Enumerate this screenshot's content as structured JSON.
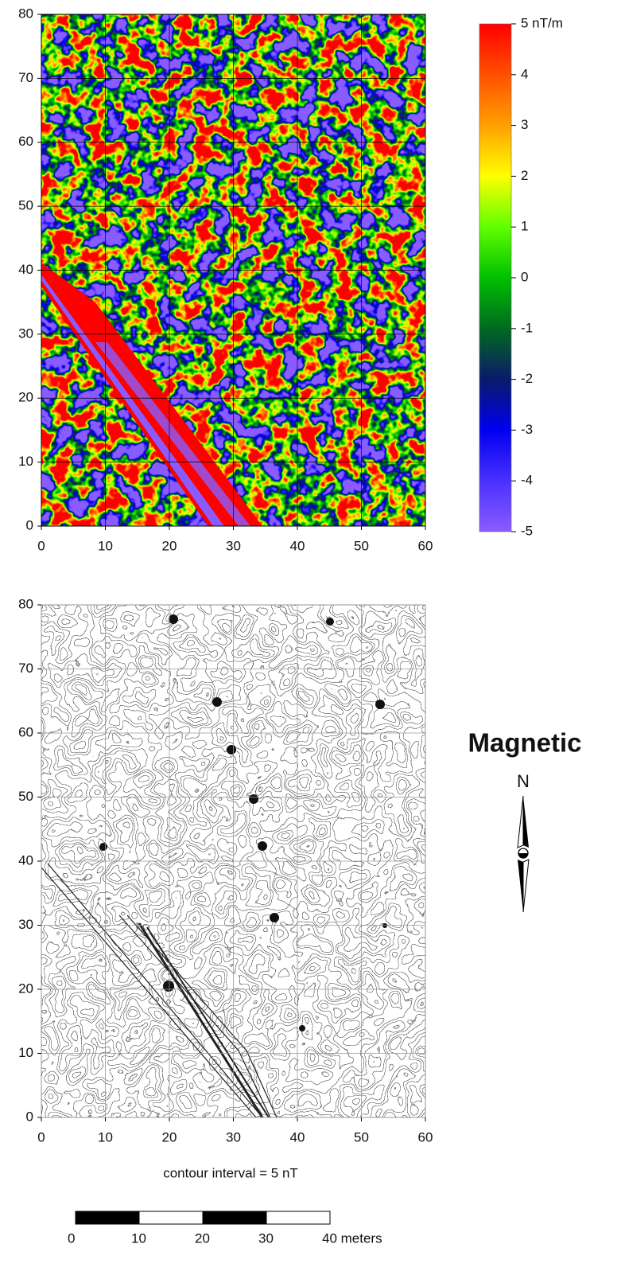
{
  "chart_data": [
    {
      "type": "heatmap",
      "xlim": [
        0,
        60
      ],
      "ylim": [
        0,
        80
      ],
      "xticks": [
        0,
        10,
        20,
        30,
        40,
        50,
        60
      ],
      "yticks": [
        0,
        10,
        20,
        30,
        40,
        50,
        60,
        70,
        80
      ],
      "grid": true,
      "colorbar": {
        "lim": [
          -5,
          5
        ],
        "ticks": [
          {
            "value": 5,
            "label": "5 nT/m"
          },
          4,
          3,
          2,
          1,
          0,
          -1,
          -2,
          -3,
          -4,
          -5
        ],
        "colors": [
          "#8a5cff",
          "#4a30ff",
          "#0000f0",
          "#0a1a6a",
          "#006a20",
          "#00c000",
          "#60ff00",
          "#ffff00",
          "#ffa000",
          "#ff5000",
          "#ff0000"
        ]
      }
    },
    {
      "type": "contour",
      "xlim": [
        0,
        60
      ],
      "ylim": [
        0,
        80
      ],
      "xticks": [
        0,
        10,
        20,
        30,
        40,
        50,
        60
      ],
      "yticks": [
        0,
        10,
        20,
        30,
        40,
        50,
        60,
        70,
        80
      ],
      "grid": true,
      "annotation": "contour interval = 5 nT",
      "title": "Magnetic",
      "north_label": "N",
      "scale_bar": {
        "lim": [
          0,
          40
        ],
        "ticks": [
          0,
          10,
          20,
          30,
          {
            "value": 40,
            "label": "40 meters"
          }
        ]
      }
    }
  ]
}
